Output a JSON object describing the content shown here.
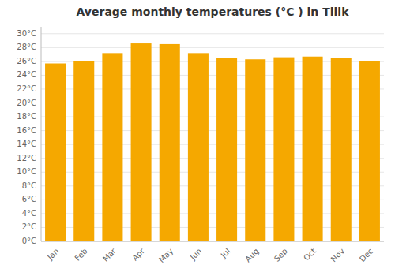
{
  "chart_data": {
    "type": "bar",
    "title": "Average monthly temperatures (°C ) in Tilik",
    "categories": [
      "Jan",
      "Feb",
      "Mar",
      "Apr",
      "May",
      "Jun",
      "Jul",
      "Aug",
      "Sep",
      "Oct",
      "Nov",
      "Dec"
    ],
    "values": [
      25.7,
      26.1,
      27.2,
      28.6,
      28.5,
      27.2,
      26.5,
      26.3,
      26.6,
      26.7,
      26.5,
      26.1
    ],
    "color": "#F5A800",
    "ylim": [
      0,
      31
    ],
    "yticks": [
      {
        "value": 0,
        "label": "0°C"
      },
      {
        "value": 2,
        "label": "2°C"
      },
      {
        "value": 4,
        "label": "4°C"
      },
      {
        "value": 6,
        "label": "6°C"
      },
      {
        "value": 8,
        "label": "8°C"
      },
      {
        "value": 10,
        "label": "10°C"
      },
      {
        "value": 12,
        "label": "12°C"
      },
      {
        "value": 14,
        "label": "14°C"
      },
      {
        "value": 16,
        "label": "16°C"
      },
      {
        "value": 18,
        "label": "18°C"
      },
      {
        "value": 20,
        "label": "20°C"
      },
      {
        "value": 22,
        "label": "22°C"
      },
      {
        "value": 24,
        "label": "24°C"
      },
      {
        "value": 26,
        "label": "26°C"
      },
      {
        "value": 28,
        "label": "28°C"
      },
      {
        "value": 30,
        "label": "30°C"
      }
    ],
    "grid": true
  }
}
